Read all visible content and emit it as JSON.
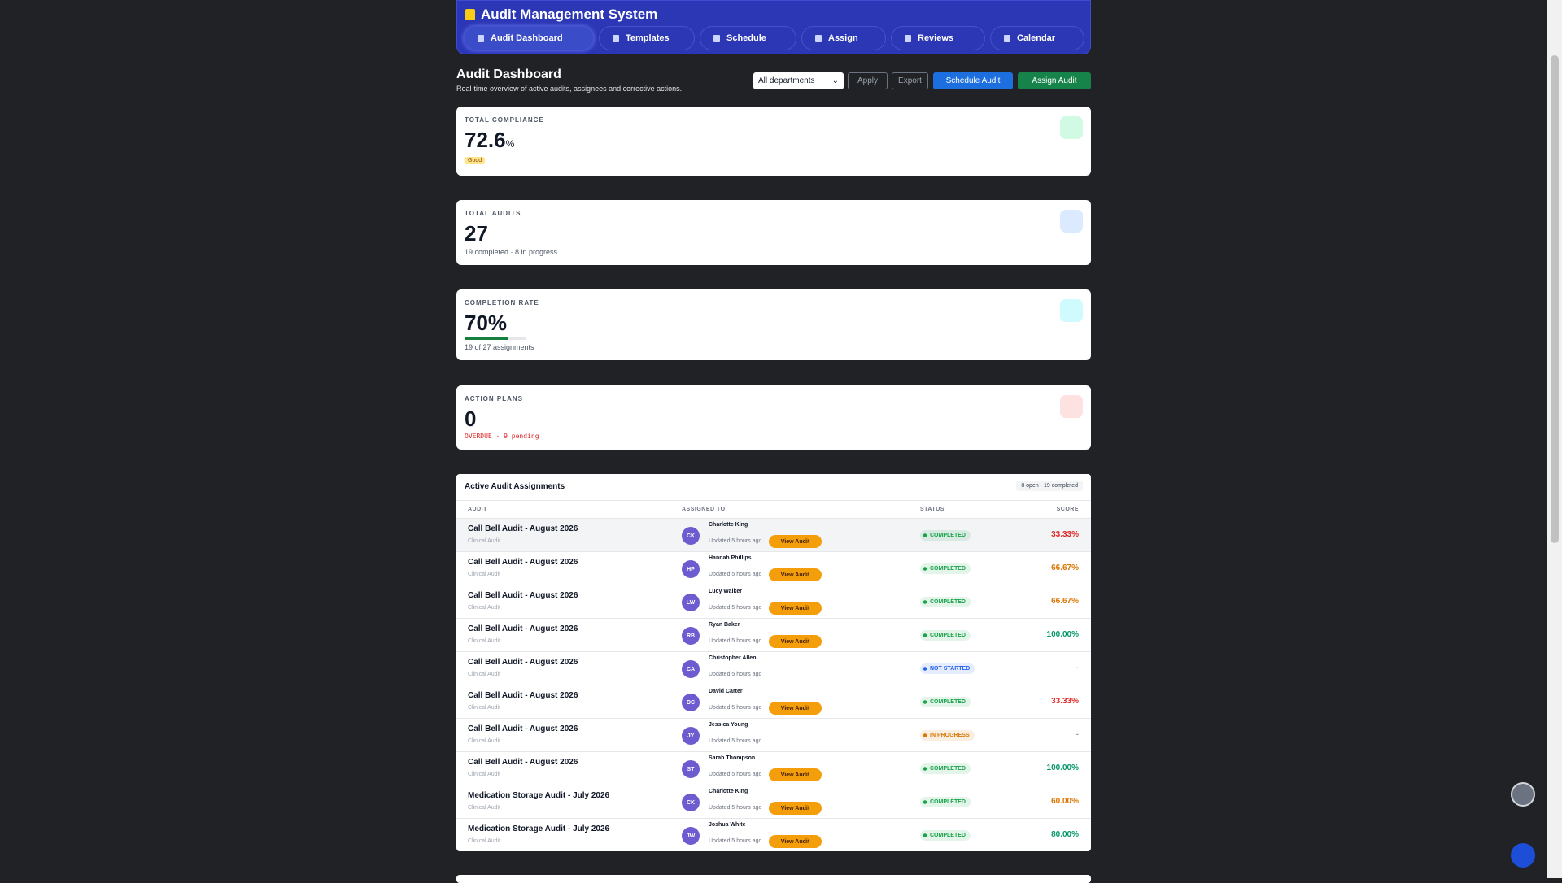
{
  "header": {
    "title": "Audit Management System",
    "tabs": [
      "Audit Dashboard",
      "Templates",
      "Schedule",
      "Assign",
      "Reviews",
      "Calendar"
    ],
    "active_tab": 0
  },
  "page": {
    "title": "Audit Dashboard",
    "subtitle": "Real-time overview of active audits, assignees and corrective actions.",
    "filter": "All departments",
    "apply": "Apply",
    "export": "Export",
    "schedule": "Schedule Audit",
    "assign": "Assign Audit"
  },
  "cards": [
    {
      "label": "TOTAL COMPLIANCE",
      "value": "72.6",
      "unit": "%",
      "badge": "Good"
    },
    {
      "label": "TOTAL AUDITS",
      "value": "27",
      "note": "19 completed · 8 in progress"
    },
    {
      "label": "COMPLETION RATE",
      "value": "70%",
      "progress": 70,
      "note": "19 of 27 assignments"
    },
    {
      "label": "ACTION PLANS",
      "value": "0",
      "note": "OVERDUE · 9 pending"
    }
  ],
  "table": {
    "title": "Active Audit Assignments",
    "badge": "8 open · 19 completed",
    "columns": [
      "AUDIT",
      "ASSIGNED TO",
      "STATUS",
      "SCORE"
    ],
    "rows": [
      {
        "audit": "Call Bell Audit - August 2026",
        "category": "Clinical Audit",
        "initials": "CK",
        "assignee": "Charlotte King",
        "updated": "Updated 5 hours ago",
        "action": "View Audit",
        "status": "COMPLETED",
        "status_color": "#16a34a",
        "score": "33.33%",
        "score_color": "#dc2626"
      },
      {
        "audit": "Call Bell Audit - August 2026",
        "category": "Clinical Audit",
        "initials": "HP",
        "assignee": "Hannah Phillips",
        "updated": "Updated 5 hours ago",
        "action": "View Audit",
        "status": "COMPLETED",
        "status_color": "#16a34a",
        "score": "66.67%",
        "score_color": "#d97706"
      },
      {
        "audit": "Call Bell Audit - August 2026",
        "category": "Clinical Audit",
        "initials": "LW",
        "assignee": "Lucy Walker",
        "updated": "Updated 5 hours ago",
        "action": "View Audit",
        "status": "COMPLETED",
        "status_color": "#16a34a",
        "score": "66.67%",
        "score_color": "#d97706"
      },
      {
        "audit": "Call Bell Audit - August 2026",
        "category": "Clinical Audit",
        "initials": "RB",
        "assignee": "Ryan Baker",
        "updated": "Updated 5 hours ago",
        "action": "View Audit",
        "status": "COMPLETED",
        "status_color": "#16a34a",
        "score": "100.00%",
        "score_color": "#059669"
      },
      {
        "audit": "Call Bell Audit - August 2026",
        "category": "Clinical Audit",
        "initials": "CA",
        "assignee": "Christopher Allen",
        "updated": "Updated 5 hours ago",
        "action": null,
        "status": "NOT STARTED",
        "status_color": "#2563eb",
        "score": "-",
        "score_color": "#9ca3af"
      },
      {
        "audit": "Call Bell Audit - August 2026",
        "category": "Clinical Audit",
        "initials": "DC",
        "assignee": "David Carter",
        "updated": "Updated 5 hours ago",
        "action": "View Audit",
        "status": "COMPLETED",
        "status_color": "#16a34a",
        "score": "33.33%",
        "score_color": "#dc2626"
      },
      {
        "audit": "Call Bell Audit - August 2026",
        "category": "Clinical Audit",
        "initials": "JY",
        "assignee": "Jessica Young",
        "updated": "Updated 5 hours ago",
        "action": null,
        "status": "IN PROGRESS",
        "status_color": "#d97706",
        "score": "-",
        "score_color": "#9ca3af"
      },
      {
        "audit": "Call Bell Audit - August 2026",
        "category": "Clinical Audit",
        "initials": "ST",
        "assignee": "Sarah Thompson",
        "updated": "Updated 5 hours ago",
        "action": "View Audit",
        "status": "COMPLETED",
        "status_color": "#16a34a",
        "score": "100.00%",
        "score_color": "#059669"
      },
      {
        "audit": "Medication Storage Audit - July 2026",
        "category": "Clinical Audit",
        "initials": "CK",
        "assignee": "Charlotte King",
        "updated": "Updated 5 hours ago",
        "action": "View Audit",
        "status": "COMPLETED",
        "status_color": "#16a34a",
        "score": "60.00%",
        "score_color": "#d97706"
      },
      {
        "audit": "Medication Storage Audit - July 2026",
        "category": "Clinical Audit",
        "initials": "JW",
        "assignee": "Joshua White",
        "updated": "Updated 5 hours ago",
        "action": "View Audit",
        "status": "COMPLETED",
        "status_color": "#16a34a",
        "score": "80.00%",
        "score_color": "#059669"
      }
    ]
  }
}
